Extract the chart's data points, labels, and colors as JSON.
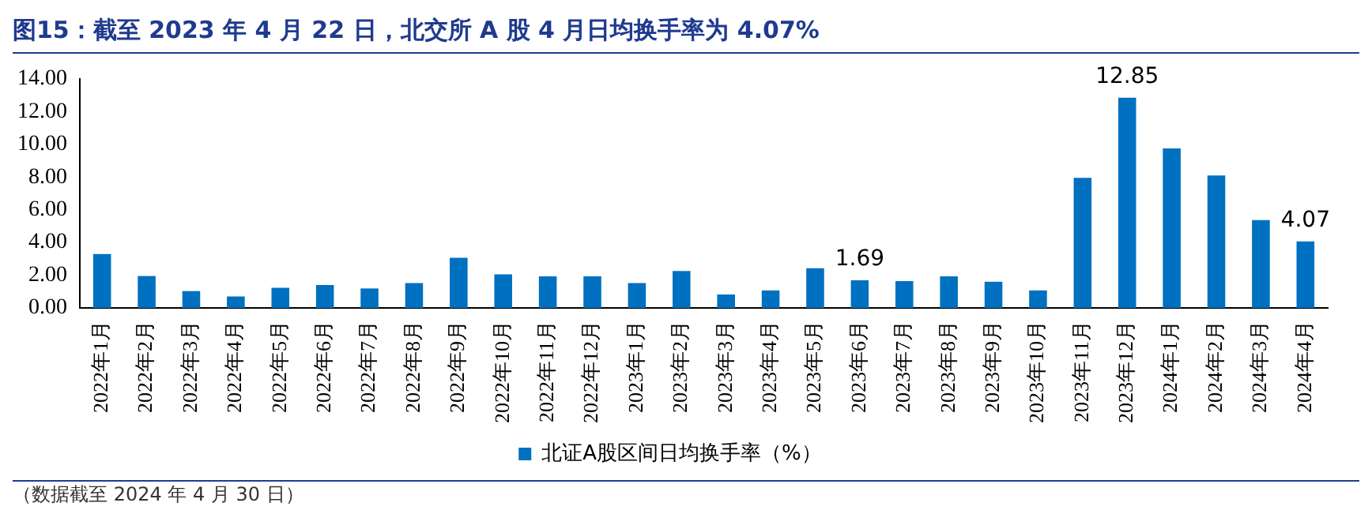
{
  "chart_data": {
    "type": "bar",
    "title": "图15：截至 2023 年 4 月 22 日，北交所 A 股 4 月日均换手率为 4.07%",
    "categories": [
      "2022年1月",
      "2022年2月",
      "2022年3月",
      "2022年4月",
      "2022年5月",
      "2022年6月",
      "2022年7月",
      "2022年8月",
      "2022年9月",
      "2022年10月",
      "2022年11月",
      "2022年12月",
      "2023年1月",
      "2023年2月",
      "2023年3月",
      "2023年4月",
      "2023年5月",
      "2023年6月",
      "2023年7月",
      "2023年8月",
      "2023年9月",
      "2023年10月",
      "2023年11月",
      "2023年12月",
      "2024年1月",
      "2024年2月",
      "2024年3月",
      "2024年4月"
    ],
    "series": [
      {
        "name": "北证A股区间日均换手率（%）",
        "color": "#0070c0",
        "values": [
          3.3,
          1.95,
          1.03,
          0.7,
          1.23,
          1.4,
          1.19,
          1.52,
          3.07,
          2.05,
          1.93,
          1.93,
          1.52,
          2.26,
          0.82,
          1.07,
          2.42,
          1.69,
          1.64,
          1.93,
          1.6,
          1.07,
          7.95,
          12.85,
          9.75,
          8.1,
          5.37,
          4.07
        ],
        "value_labels": [
          null,
          null,
          null,
          null,
          null,
          null,
          null,
          null,
          null,
          null,
          null,
          null,
          null,
          null,
          null,
          null,
          null,
          "1.69",
          null,
          null,
          null,
          null,
          null,
          "12.85",
          null,
          null,
          null,
          "4.07"
        ]
      }
    ],
    "ylim": [
      0,
      14
    ],
    "yticks": [
      "0.00",
      "2.00",
      "4.00",
      "6.00",
      "8.00",
      "10.00",
      "12.00",
      "14.00"
    ],
    "grid": false,
    "legend": "bottom",
    "annotations": [
      "（数据截至 2024 年 4 月 30 日）"
    ]
  }
}
